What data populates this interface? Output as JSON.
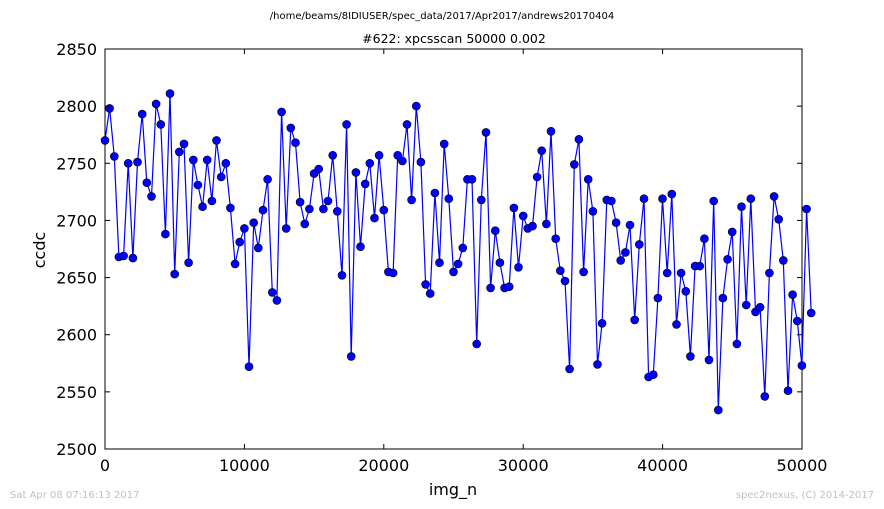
{
  "chart_data": {
    "type": "line",
    "suptitle": "/home/beams/8IDIUSER/spec_data/2017/Apr2017/andrews20170404",
    "title": "#622: xpcsscan 50000 0.002",
    "xlabel": "img_n",
    "ylabel": "ccdc",
    "xlim": [
      0,
      50000
    ],
    "ylim": [
      2500,
      2850
    ],
    "xticks": [
      0,
      10000,
      20000,
      30000,
      40000,
      50000
    ],
    "yticks": [
      2500,
      2550,
      2600,
      2650,
      2700,
      2750,
      2800,
      2850
    ],
    "grid": false,
    "marker": "circle",
    "line_color": "#0000ff",
    "marker_color": "#0000ff",
    "x_step": 333.3,
    "values": [
      2770,
      2798,
      2756,
      2668,
      2669,
      2750,
      2667,
      2751,
      2793,
      2733,
      2721,
      2802,
      2784,
      2688,
      2811,
      2653,
      2760,
      2767,
      2663,
      2753,
      2731,
      2712,
      2753,
      2717,
      2770,
      2738,
      2750,
      2711,
      2662,
      2681,
      2693,
      2572,
      2698,
      2676,
      2709,
      2736,
      2637,
      2630,
      2795,
      2693,
      2781,
      2768,
      2716,
      2697,
      2710,
      2741,
      2745,
      2710,
      2717,
      2757,
      2708,
      2652,
      2784,
      2581,
      2742,
      2677,
      2732,
      2750,
      2702,
      2757,
      2709,
      2655,
      2654,
      2757,
      2752,
      2784,
      2718,
      2800,
      2751,
      2644,
      2636,
      2724,
      2663,
      2767,
      2719,
      2655,
      2662,
      2676,
      2736,
      2736,
      2592,
      2718,
      2777,
      2641,
      2691,
      2663,
      2641,
      2642,
      2711,
      2659,
      2704,
      2693,
      2695,
      2738,
      2761,
      2697,
      2778,
      2684,
      2656,
      2647,
      2570,
      2749,
      2771,
      2655,
      2736,
      2708,
      2574,
      2610,
      2718,
      2717,
      2698,
      2665,
      2672,
      2696,
      2613,
      2679,
      2719,
      2563,
      2565,
      2632,
      2719,
      2654,
      2723,
      2609,
      2654,
      2638,
      2581,
      2660,
      2660,
      2684,
      2578,
      2717,
      2534,
      2632,
      2666,
      2690,
      2592,
      2712,
      2626,
      2719,
      2620,
      2624,
      2546,
      2654,
      2721,
      2701,
      2665,
      2551,
      2635,
      2612,
      2573,
      2710,
      2619
    ]
  },
  "footer": {
    "timestamp": "Sat Apr 08 07:16:13 2017",
    "credit": "spec2nexus, (C) 2014-2017"
  }
}
